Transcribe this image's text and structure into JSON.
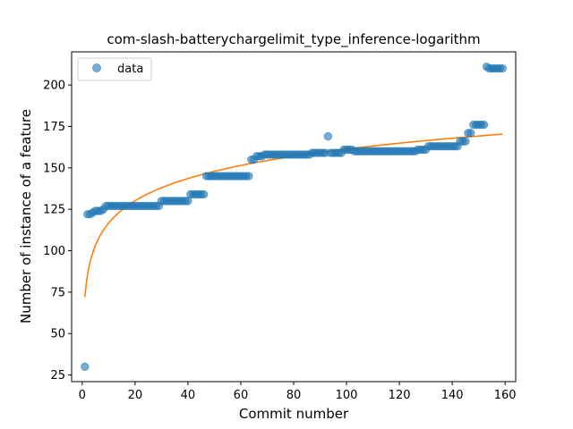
{
  "chart_data": {
    "type": "scatter",
    "title": "com-slash-batterychargelimit_type_inference-logarithm",
    "xlabel": "Commit number",
    "ylabel": "Number of instance of a feature",
    "xlim": [
      -4,
      164
    ],
    "ylim": [
      21,
      220
    ],
    "xticks": [
      0,
      20,
      40,
      60,
      80,
      100,
      120,
      140,
      160
    ],
    "yticks": [
      25,
      50,
      75,
      100,
      125,
      150,
      175,
      200
    ],
    "legend": {
      "placement": "top-left",
      "entries": [
        "data"
      ]
    },
    "grid": false,
    "series": [
      {
        "name": "data",
        "kind": "scatter",
        "color": "#1f77b4",
        "segments": [
          {
            "x_start": 1,
            "x_end": 1,
            "y": 30
          },
          {
            "x_start": 2,
            "x_end": 3,
            "y": 122
          },
          {
            "x_start": 4,
            "x_end": 4,
            "y": 123
          },
          {
            "x_start": 5,
            "x_end": 7,
            "y": 124
          },
          {
            "x_start": 8,
            "x_end": 8,
            "y": 125
          },
          {
            "x_start": 9,
            "x_end": 29,
            "y": 127
          },
          {
            "x_start": 30,
            "x_end": 40,
            "y": 130
          },
          {
            "x_start": 41,
            "x_end": 46,
            "y": 134
          },
          {
            "x_start": 47,
            "x_end": 63,
            "y": 145
          },
          {
            "x_start": 64,
            "x_end": 65,
            "y": 155
          },
          {
            "x_start": 66,
            "x_end": 68,
            "y": 157
          },
          {
            "x_start": 69,
            "x_end": 86,
            "y": 158
          },
          {
            "x_start": 87,
            "x_end": 92,
            "y": 159
          },
          {
            "x_start": 93,
            "x_end": 93,
            "y": 169
          },
          {
            "x_start": 94,
            "x_end": 98,
            "y": 159
          },
          {
            "x_start": 99,
            "x_end": 102,
            "y": 161
          },
          {
            "x_start": 103,
            "x_end": 126,
            "y": 160
          },
          {
            "x_start": 127,
            "x_end": 130,
            "y": 161
          },
          {
            "x_start": 131,
            "x_end": 142,
            "y": 163
          },
          {
            "x_start": 143,
            "x_end": 145,
            "y": 166
          },
          {
            "x_start": 146,
            "x_end": 147,
            "y": 171
          },
          {
            "x_start": 148,
            "x_end": 152,
            "y": 176
          },
          {
            "x_start": 153,
            "x_end": 153,
            "y": 211
          },
          {
            "x_start": 154,
            "x_end": 159,
            "y": 210
          }
        ]
      },
      {
        "name": "",
        "kind": "line",
        "color": "#ff7f0e",
        "model": {
          "form": "a + b*ln(x)",
          "a": 72,
          "b": 19.4,
          "x_start": 1,
          "x_end": 159
        }
      }
    ]
  }
}
